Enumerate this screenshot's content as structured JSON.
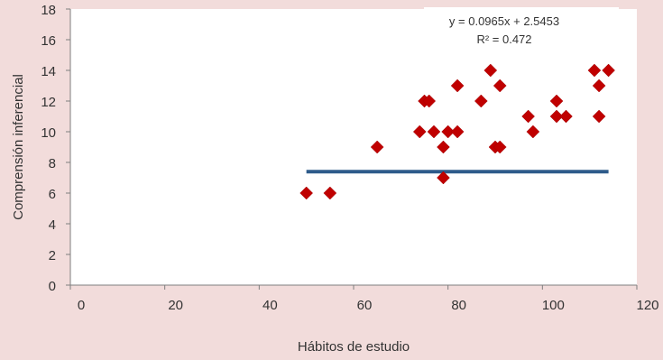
{
  "chart_data": {
    "type": "scatter",
    "xlabel": "Hábitos de estudio",
    "ylabel": "Comprensión inferencial",
    "xlim": [
      0,
      120
    ],
    "ylim": [
      0,
      18
    ],
    "x_ticks": [
      0,
      20,
      40,
      60,
      80,
      100,
      120
    ],
    "y_ticks": [
      0,
      2,
      4,
      6,
      8,
      10,
      12,
      14,
      16,
      18
    ],
    "grid": false,
    "series": [
      {
        "color": "#c00000",
        "marker": "diamond",
        "points": [
          {
            "x": 50,
            "y": 6
          },
          {
            "x": 55,
            "y": 6
          },
          {
            "x": 65,
            "y": 9
          },
          {
            "x": 74,
            "y": 10
          },
          {
            "x": 75,
            "y": 12
          },
          {
            "x": 76,
            "y": 12
          },
          {
            "x": 77,
            "y": 10
          },
          {
            "x": 79,
            "y": 7
          },
          {
            "x": 79,
            "y": 9
          },
          {
            "x": 80,
            "y": 10
          },
          {
            "x": 82,
            "y": 13
          },
          {
            "x": 82,
            "y": 10
          },
          {
            "x": 87,
            "y": 12
          },
          {
            "x": 89,
            "y": 14
          },
          {
            "x": 90,
            "y": 9
          },
          {
            "x": 91,
            "y": 9
          },
          {
            "x": 91,
            "y": 13
          },
          {
            "x": 97,
            "y": 11
          },
          {
            "x": 98,
            "y": 10
          },
          {
            "x": 103,
            "y": 12
          },
          {
            "x": 103,
            "y": 11
          },
          {
            "x": 105,
            "y": 11
          },
          {
            "x": 111,
            "y": 14
          },
          {
            "x": 112,
            "y": 13
          },
          {
            "x": 112,
            "y": 11
          },
          {
            "x": 114,
            "y": 14
          }
        ]
      }
    ],
    "trendline": {
      "color": "#2e5b8a",
      "x_range": [
        50,
        114
      ],
      "y_value": 7.4,
      "equation": "y = 0.0965x + 2.5453",
      "r_squared": "R² = 0.472"
    }
  }
}
